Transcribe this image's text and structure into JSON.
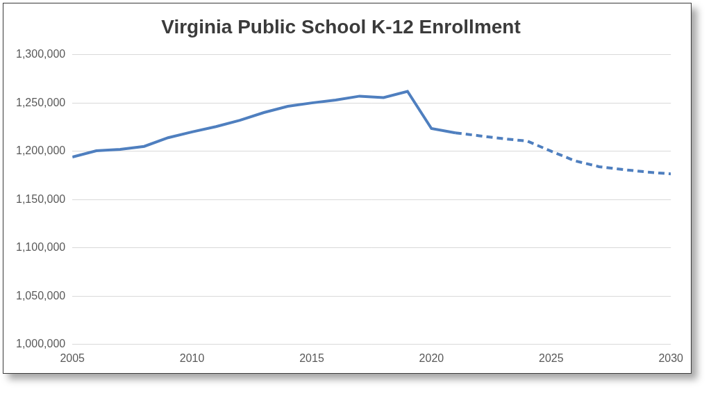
{
  "chart_data": {
    "type": "line",
    "title": "Virginia Public School K-12 Enrollment",
    "x": [
      2005,
      2006,
      2007,
      2008,
      2009,
      2010,
      2011,
      2012,
      2013,
      2014,
      2015,
      2016,
      2017,
      2018,
      2019,
      2020,
      2021,
      2022,
      2023,
      2024,
      2025,
      2026,
      2027,
      2028,
      2029,
      2030
    ],
    "series": [
      {
        "color": "#4f7fbf",
        "line_style": "solid",
        "values": [
          1194000,
          1200500,
          1202000,
          1205000,
          1214000,
          1220000,
          1225500,
          1232000,
          1240000,
          1246500,
          1250000,
          1253000,
          1257000,
          1255500,
          1262000,
          1223500,
          1219000,
          null,
          null,
          null,
          null,
          null,
          null,
          null,
          null,
          null
        ]
      },
      {
        "color": "#4f7fbf",
        "line_style": "dashed",
        "values": [
          null,
          null,
          null,
          null,
          null,
          null,
          null,
          null,
          null,
          null,
          null,
          null,
          null,
          null,
          null,
          null,
          1219000,
          1216000,
          1213000,
          1210500,
          1200000,
          1190000,
          1184000,
          1181000,
          1178500,
          1176500
        ]
      }
    ],
    "xlim": [
      2005,
      2030
    ],
    "xticks": [
      2005,
      2010,
      2015,
      2020,
      2025,
      2030
    ],
    "ylim": [
      1000000,
      1300000
    ],
    "yticks": [
      {
        "value": 1000000,
        "label": "1,000,000"
      },
      {
        "value": 1050000,
        "label": "1,050,000"
      },
      {
        "value": 1100000,
        "label": "1,100,000"
      },
      {
        "value": 1150000,
        "label": "1,150,000"
      },
      {
        "value": 1200000,
        "label": "1,200,000"
      },
      {
        "value": 1250000,
        "label": "1,250,000"
      },
      {
        "value": 1300000,
        "label": "1,300,000"
      }
    ],
    "grid": true
  }
}
